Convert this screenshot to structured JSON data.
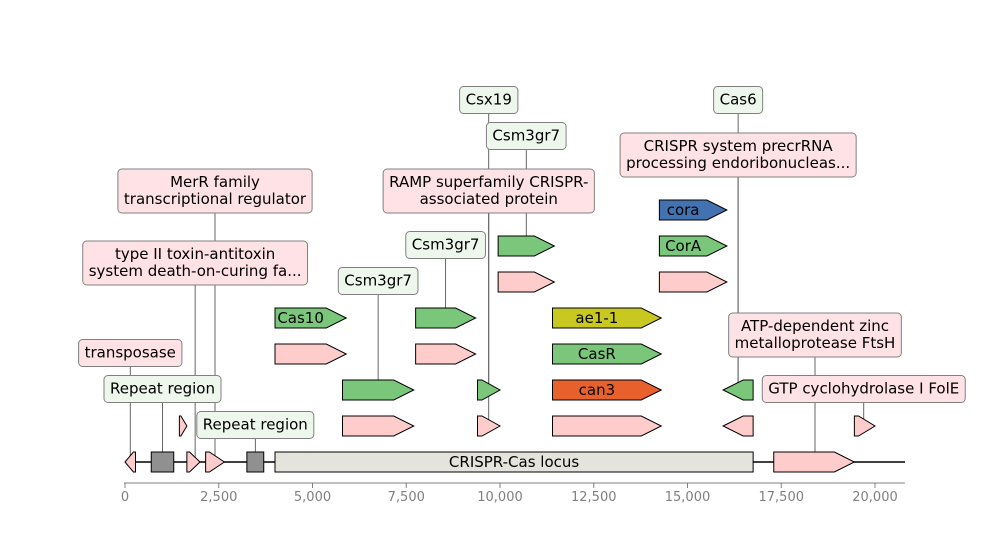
{
  "colors": {
    "background": "#ffffff",
    "backbone": "#000000",
    "axis": "#808080",
    "connector": "#404040",
    "box_border": "#808080",
    "label_pink": "#ffe2e5",
    "label_green": "#eef7ec"
  },
  "axis": {
    "min": 0,
    "max": 20800,
    "ticks": [
      {
        "value": 0,
        "label": "0"
      },
      {
        "value": 2500,
        "label": "2,500"
      },
      {
        "value": 5000,
        "label": "5,000"
      },
      {
        "value": 7500,
        "label": "7,500"
      },
      {
        "value": 10000,
        "label": "10,000"
      },
      {
        "value": 12500,
        "label": "12,500"
      },
      {
        "value": 15000,
        "label": "15,000"
      },
      {
        "value": 17500,
        "label": "17,500"
      },
      {
        "value": 20000,
        "label": "20,000"
      }
    ]
  },
  "backbone": {
    "start": 0,
    "end": 20800
  },
  "features": [
    {
      "id": "f1",
      "start": 0,
      "end": 280,
      "strand": -1,
      "track": 0,
      "color": "#ffcccc"
    },
    {
      "id": "f2",
      "start": 700,
      "end": 1300,
      "strand": 0,
      "track": 0,
      "color": "#909090"
    },
    {
      "id": "f3",
      "start": 1650,
      "end": 2000,
      "strand": 1,
      "track": 0,
      "color": "#ffcccc"
    },
    {
      "id": "f4",
      "start": 2150,
      "end": 2650,
      "strand": 1,
      "track": 0,
      "color": "#ffcccc"
    },
    {
      "id": "f5",
      "start": 3250,
      "end": 3700,
      "strand": 0,
      "track": 0,
      "color": "#909090"
    },
    {
      "id": "locus",
      "start": 4000,
      "end": 16750,
      "strand": 0,
      "track": 0,
      "color": "#e4e4dc",
      "text": "CRISPR-Cas locus",
      "textColor": "#000000"
    },
    {
      "id": "f7",
      "start": 17300,
      "end": 19450,
      "strand": 1,
      "track": 0,
      "color": "#ffcccc"
    },
    {
      "id": "r1a",
      "start": 1450,
      "end": 1650,
      "strand": 1,
      "track": 1,
      "color": "#ffcccc"
    },
    {
      "id": "r1b",
      "start": 5800,
      "end": 7700,
      "strand": 1,
      "track": 1,
      "color": "#ffcccc"
    },
    {
      "id": "r1c",
      "start": 9400,
      "end": 10000,
      "strand": 1,
      "track": 1,
      "color": "#ffcccc"
    },
    {
      "id": "r1d",
      "start": 11400,
      "end": 14300,
      "strand": 1,
      "track": 1,
      "color": "#ffcccc"
    },
    {
      "id": "r1e",
      "start": 15950,
      "end": 16750,
      "strand": -1,
      "track": 1,
      "color": "#ffcccc"
    },
    {
      "id": "r1f",
      "start": 19450,
      "end": 20000,
      "strand": 1,
      "track": 1,
      "color": "#ffcccc"
    },
    {
      "id": "r2a",
      "start": 5800,
      "end": 7700,
      "strand": 1,
      "track": 2,
      "color": "#7ac67a"
    },
    {
      "id": "r2b",
      "start": 9400,
      "end": 10000,
      "strand": 1,
      "track": 2,
      "color": "#7ac67a"
    },
    {
      "id": "r2c",
      "start": 11400,
      "end": 14300,
      "strand": 1,
      "track": 2,
      "color": "#e8612c",
      "text": "can3",
      "textColor": "#000000"
    },
    {
      "id": "r2d",
      "start": 15950,
      "end": 16750,
      "strand": -1,
      "track": 2,
      "color": "#7ac67a"
    },
    {
      "id": "r3a",
      "start": 4000,
      "end": 5900,
      "strand": 1,
      "track": 3,
      "color": "#ffcccc"
    },
    {
      "id": "r3b",
      "start": 7750,
      "end": 9350,
      "strand": 1,
      "track": 3,
      "color": "#ffcccc"
    },
    {
      "id": "r3c",
      "start": 11400,
      "end": 14300,
      "strand": 1,
      "track": 3,
      "color": "#7ac67a",
      "text": "CasR",
      "textColor": "#000000"
    },
    {
      "id": "r4a",
      "start": 4000,
      "end": 5900,
      "strand": 1,
      "track": 4,
      "color": "#7ac67a",
      "text": "Cas10",
      "textColor": "#000000"
    },
    {
      "id": "r4b",
      "start": 7750,
      "end": 9350,
      "strand": 1,
      "track": 4,
      "color": "#7ac67a"
    },
    {
      "id": "r4c",
      "start": 11400,
      "end": 14300,
      "strand": 1,
      "track": 4,
      "color": "#c8c820",
      "text": "ae1-1",
      "textColor": "#000000"
    },
    {
      "id": "r5a",
      "start": 9950,
      "end": 11450,
      "strand": 1,
      "track": 5,
      "color": "#ffcccc"
    },
    {
      "id": "r5b",
      "start": 14250,
      "end": 16050,
      "strand": 1,
      "track": 5,
      "color": "#ffcccc"
    },
    {
      "id": "r6a",
      "start": 9950,
      "end": 11450,
      "strand": 1,
      "track": 6,
      "color": "#7ac67a"
    },
    {
      "id": "r6b",
      "start": 14250,
      "end": 16050,
      "strand": 1,
      "track": 6,
      "color": "#7ac67a",
      "text": "CorA",
      "textColor": "#000000"
    },
    {
      "id": "r7a",
      "start": 14250,
      "end": 16050,
      "strand": 1,
      "track": 7,
      "color": "#4272b0",
      "text": "cora",
      "textColor": "#ffffff"
    }
  ],
  "annotations": [
    {
      "id": "transposase",
      "lines": [
        "transposase"
      ],
      "kind": "pink",
      "anchor": 140,
      "anchorTrack": 0,
      "labelX": 140,
      "labelY": 353
    },
    {
      "id": "repeat-region-1",
      "lines": [
        "Repeat region"
      ],
      "kind": "green",
      "anchor": 1000,
      "anchorTrack": 0,
      "labelX": 1000,
      "labelY": 389
    },
    {
      "id": "repeat-region-2",
      "lines": [
        "Repeat region"
      ],
      "kind": "green",
      "anchor": 3475,
      "anchorTrack": 0,
      "labelX": 3475,
      "labelY": 425
    },
    {
      "id": "toxin-antitoxin",
      "lines": [
        "type II toxin-antitoxin",
        "system death-on-curing fa..."
      ],
      "kind": "pink",
      "anchor": 1870,
      "anchorTrack": 0,
      "labelX": 1870,
      "labelY": 263
    },
    {
      "id": "merr-regulator",
      "lines": [
        "MerR family",
        "transcriptional regulator"
      ],
      "kind": "pink",
      "anchor": 2400,
      "anchorTrack": 0,
      "labelX": 2400,
      "labelY": 191
    },
    {
      "id": "csm3gr7-a",
      "lines": [
        "Csm3gr7"
      ],
      "kind": "green",
      "anchor": 6750,
      "anchorTrack": 2,
      "labelX": 6750,
      "labelY": 281
    },
    {
      "id": "ramp-protein",
      "lines": [
        "RAMP superfamily CRISPR-",
        "associated protein"
      ],
      "kind": "pink",
      "anchor": 9700,
      "anchorTrack": 1,
      "labelX": 9700,
      "labelY": 191
    },
    {
      "id": "csm3gr7-b",
      "lines": [
        "Csm3gr7"
      ],
      "kind": "green",
      "anchor": 8550,
      "anchorTrack": 4,
      "labelX": 8550,
      "labelY": 245
    },
    {
      "id": "csx19",
      "lines": [
        "Csx19"
      ],
      "kind": "green",
      "anchor": 9700,
      "anchorTrack": 2,
      "labelX": 9700,
      "labelY": 100
    },
    {
      "id": "csm3gr7-c",
      "lines": [
        "Csm3gr7"
      ],
      "kind": "green",
      "anchor": 10700,
      "anchorTrack": 6,
      "labelX": 10700,
      "labelY": 136
    },
    {
      "id": "cas6",
      "lines": [
        "Cas6"
      ],
      "kind": "green",
      "anchor": 16350,
      "anchorTrack": 2,
      "labelX": 16350,
      "labelY": 100
    },
    {
      "id": "precrrna-endoribonuclease",
      "lines": [
        "CRISPR system precrRNA",
        "processing endoribonucleas..."
      ],
      "kind": "pink",
      "anchor": 16350,
      "anchorTrack": 2,
      "labelX": 16350,
      "labelY": 155
    },
    {
      "id": "ftsh-protease",
      "lines": [
        "ATP-dependent zinc",
        "metalloprotease FtsH"
      ],
      "kind": "pink",
      "anchor": 18400,
      "anchorTrack": 0,
      "labelX": 18400,
      "labelY": 335
    },
    {
      "id": "fole",
      "lines": [
        "GTP cyclohydrolase I FolE"
      ],
      "kind": "pink",
      "anchor": 19700,
      "anchorTrack": 1,
      "labelX": 19700,
      "labelY": 389
    }
  ]
}
